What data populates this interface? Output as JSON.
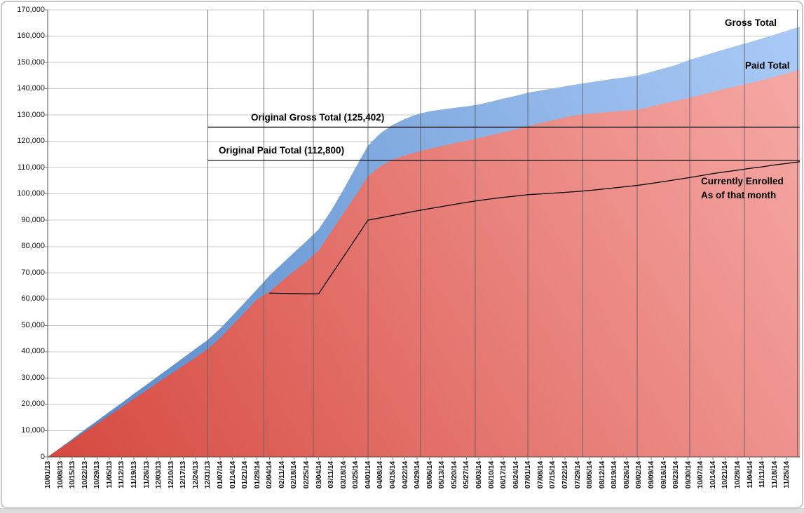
{
  "chart_data": {
    "type": "area",
    "title": "",
    "y": {
      "min": 0,
      "max": 170000,
      "step": 10000,
      "tick_labels": [
        "0",
        "10,000",
        "20,000",
        "30,000",
        "40,000",
        "50,000",
        "60,000",
        "70,000",
        "80,000",
        "90,000",
        "100,000",
        "110,000",
        "120,000",
        "130,000",
        "140,000",
        "150,000",
        "160,000",
        "170,000"
      ]
    },
    "x": {
      "tick_labels": [
        "10/01/13",
        "10/08/13",
        "10/15/13",
        "10/22/13",
        "10/29/13",
        "11/05/13",
        "11/12/13",
        "11/19/13",
        "11/26/13",
        "12/03/13",
        "12/10/13",
        "12/17/13",
        "12/24/13",
        "12/31/13",
        "01/07/14",
        "01/14/14",
        "01/21/14",
        "01/28/14",
        "02/04/14",
        "02/11/14",
        "02/18/14",
        "02/25/14",
        "03/04/14",
        "03/11/14",
        "03/18/14",
        "03/25/14",
        "04/01/14",
        "04/08/14",
        "04/15/14",
        "04/22/14",
        "04/29/14",
        "05/06/14",
        "05/13/14",
        "05/20/14",
        "05/27/14",
        "06/03/14",
        "06/10/14",
        "06/17/14",
        "06/24/14",
        "07/01/14",
        "07/08/14",
        "07/15/14",
        "07/22/14",
        "07/29/14",
        "08/05/14",
        "08/12/14",
        "08/19/14",
        "08/26/14",
        "09/02/14",
        "09/09/14",
        "09/16/14",
        "09/23/14",
        "09/30/14",
        "10/07/14",
        "10/14/14",
        "10/21/14",
        "10/28/14",
        "11/04/14",
        "11/11/14",
        "11/18/14",
        "11/25/14"
      ]
    },
    "series": [
      {
        "name": "Gross Total",
        "kind": "area",
        "gradient": [
          "#5588C8",
          "#ABCBF7"
        ],
        "values": [
          0,
          3400,
          6800,
          10300,
          13700,
          17100,
          20500,
          24000,
          27400,
          30800,
          34200,
          37700,
          41100,
          44500,
          48800,
          53700,
          58700,
          63700,
          68900,
          73300,
          77700,
          82000,
          86500,
          93500,
          101500,
          110000,
          118300,
          123000,
          126200,
          128500,
          130300,
          131400,
          132100,
          132700,
          133300,
          134000,
          135100,
          136200,
          137300,
          138500,
          139300,
          140100,
          140900,
          141700,
          142400,
          143100,
          143800,
          144400,
          145100,
          146400,
          147700,
          149000,
          150800,
          152200,
          153600,
          155000,
          156400,
          157700,
          159100,
          160500,
          162000
        ]
      },
      {
        "name": "Paid Total",
        "kind": "area",
        "gradient": [
          "#D5493F",
          "#F7ACA9"
        ],
        "values": [
          0,
          3200,
          6300,
          9500,
          12600,
          15800,
          18900,
          22100,
          25200,
          28400,
          31500,
          34700,
          37800,
          41000,
          45200,
          50100,
          55000,
          59900,
          62800,
          66800,
          70600,
          74300,
          78500,
          85500,
          92500,
          99500,
          106600,
          110500,
          113000,
          114600,
          116000,
          117200,
          118200,
          119200,
          120200,
          121200,
          122300,
          123400,
          124500,
          125800,
          126900,
          128000,
          129100,
          130000,
          130500,
          130900,
          131300,
          131700,
          132100,
          133200,
          134300,
          135400,
          136400,
          137600,
          138800,
          140000,
          141000,
          142100,
          143300,
          144500,
          145800
        ]
      },
      {
        "name": "Currently Enrolled As of that month",
        "kind": "line",
        "color": "#000000",
        "values": [
          null,
          null,
          null,
          null,
          null,
          null,
          null,
          null,
          null,
          null,
          null,
          null,
          null,
          null,
          null,
          null,
          null,
          null,
          62300,
          62200,
          62100,
          62000,
          62000,
          69000,
          76000,
          83000,
          90000,
          90900,
          91800,
          92700,
          93600,
          94400,
          95200,
          96000,
          96800,
          97500,
          98100,
          98700,
          99200,
          99700,
          100000,
          100300,
          100600,
          100900,
          101300,
          101800,
          102300,
          102800,
          103300,
          104000,
          104700,
          105400,
          106100,
          106900,
          107700,
          108400,
          109000,
          109700,
          110300,
          111000,
          111600
        ]
      }
    ],
    "reference_lines": [
      {
        "label": "Original Gross Total (125,402)",
        "value": 125402
      },
      {
        "label": "Original Paid Total (112,800)",
        "value": 112800
      }
    ],
    "annotations": {
      "gross_series_label": "Gross Total",
      "paid_series_label": "Paid Total",
      "enrolled_label_line1": "Currently Enrolled",
      "enrolled_label_line2": "As of that month",
      "original_gross_label": "Original Gross Total (125,402)",
      "original_paid_label": "Original Paid Total (112,800)"
    },
    "layout": {
      "grid": true,
      "legend_position": "inline-annotations",
      "hgrid_color": "#C8C8C8",
      "vgrid_color": "#5A5A5A",
      "axis_color": "#4D4D4D",
      "tick_color": "#808080",
      "reference_line_color": "#000000",
      "month_gridline_day_offsets": [
        91,
        123,
        151,
        182,
        212,
        243,
        273,
        304,
        335,
        365,
        396,
        426
      ]
    }
  }
}
